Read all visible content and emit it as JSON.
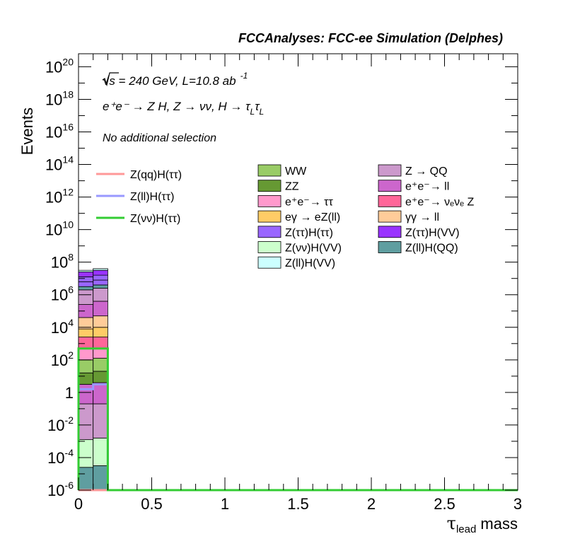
{
  "chart_data": {
    "type": "bar",
    "title": "FCCAnalyses: FCC-ee Simulation (Delphes)",
    "xlabel": {
      "main": "τ",
      "sub": "lead",
      "rest": " mass"
    },
    "ylabel": "Events",
    "xlim": [
      0,
      3
    ],
    "ylim_log10": [
      -6,
      20.8
    ],
    "ylog": true,
    "x_ticks": [
      "0",
      "0.5",
      "1",
      "1.5",
      "2",
      "2.5",
      "3"
    ],
    "x_tick_values": [
      0,
      0.5,
      1,
      1.5,
      2,
      2.5,
      3
    ],
    "y_ticks": [
      {
        "e": 20,
        "base": "10",
        "exp": "20"
      },
      {
        "e": 18,
        "base": "10",
        "exp": "18"
      },
      {
        "e": 16,
        "base": "10",
        "exp": "16"
      },
      {
        "e": 14,
        "base": "10",
        "exp": "14"
      },
      {
        "e": 12,
        "base": "10",
        "exp": "12"
      },
      {
        "e": 10,
        "base": "10",
        "exp": "10"
      },
      {
        "e": 8,
        "base": "10",
        "exp": "8"
      },
      {
        "e": 6,
        "base": "10",
        "exp": "6"
      },
      {
        "e": 4,
        "base": "10",
        "exp": "4"
      },
      {
        "e": 2,
        "base": "10",
        "exp": "2"
      },
      {
        "e": 0,
        "base": "1",
        "exp": ""
      },
      {
        "e": -2,
        "base": "10",
        "exp": "-2"
      },
      {
        "e": -4,
        "base": "10",
        "exp": "-4"
      },
      {
        "e": -6,
        "base": "10",
        "exp": "-6"
      }
    ],
    "bin_edges": [
      0,
      0.1,
      0.2
    ],
    "stack_boundaries_log10": [
      [
        [
          -6,
          -6
        ],
        [
          -1,
          -1.1
        ],
        [
          -1.9,
          -2
        ],
        [
          -2.5,
          -2.6
        ],
        [
          -4.4,
          -4.3
        ],
        [
          -4.6,
          -4.5
        ],
        [
          -2.9,
          -2.8
        ],
        [
          -0.7,
          -0.7
        ]
      ],
      [
        [
          -0.7,
          -0.7
        ],
        [
          0.5,
          0.6
        ],
        [
          1.2,
          1.3
        ],
        [
          2,
          2.1
        ],
        [
          2.7,
          2.7
        ],
        [
          3.4,
          3.4
        ],
        [
          3.9,
          4
        ],
        [
          4.6,
          4.7
        ]
      ],
      [
        [
          4.6,
          4.7
        ],
        [
          5.4,
          5.6
        ],
        [
          6.3,
          6.4
        ],
        [
          6.5,
          6.6
        ],
        [
          6.8,
          6.9
        ],
        [
          7.1,
          7.2
        ],
        [
          7.4,
          7.5
        ],
        [
          7.5,
          7.6
        ]
      ]
    ],
    "stack_order_bottom_to_top": [
      "#5f9ea0",
      "#9966ff",
      "#9966ff",
      "#9933ff",
      "#ccffff",
      "#ccffcc",
      "#cc99cc",
      "#cc66cc",
      "#669933",
      "#99cc66",
      "#ff99cc",
      "#ff6699",
      "#ffcc66",
      "#ffcc99",
      "#cc66cc",
      "#cc99cc"
    ],
    "overlays": [
      {
        "name": "Z(qq)H(ττ)",
        "color": "#ff9999",
        "values_log10": [
          -6,
          -6
        ]
      },
      {
        "name": "Z(ll)H(ττ)",
        "color": "#9999ff",
        "values_log10": [
          0.2,
          0.5
        ]
      },
      {
        "name": "Z(νν)H(ττ)",
        "color": "#33cc33",
        "values_log10": [
          2.7,
          2.7
        ]
      }
    ],
    "stack_legend": [
      {
        "name": "WW",
        "color": "#99cc66"
      },
      {
        "name": "ZZ",
        "color": "#669933"
      },
      {
        "name": "e⁺e⁻→ ττ",
        "color": "#ff99cc"
      },
      {
        "name": "eγ → eZ(ll)",
        "color": "#ffcc66"
      },
      {
        "name": "Z(ττ)H(ττ)",
        "color": "#9966ff"
      },
      {
        "name": "Z(νν)H(VV)",
        "color": "#ccffcc"
      },
      {
        "name": "Z(ll)H(VV)",
        "color": "#ccffff"
      },
      {
        "name": "Z → QQ",
        "color": "#cc99cc"
      },
      {
        "name": "e⁺e⁻→ ll",
        "color": "#cc66cc"
      },
      {
        "name": "e⁺e⁻→ νₑνₑ Z",
        "color": "#ff6699"
      },
      {
        "name": "γγ → ll",
        "color": "#ffcc99"
      },
      {
        "name": "Z(ττ)H(VV)",
        "color": "#9933ff"
      },
      {
        "name": "Z(ll)H(QQ)",
        "color": "#5f9ea0"
      }
    ],
    "annotations": {
      "energy": "√s = 240 GeV, L=10.8 ab",
      "energy_sup": "-1",
      "process": "e⁺e⁻ → Z H, Z → νν, H → τ",
      "process_sub1": "L",
      "process_tail": "τ",
      "process_sub2": "L",
      "selection": "No additional selection"
    }
  }
}
